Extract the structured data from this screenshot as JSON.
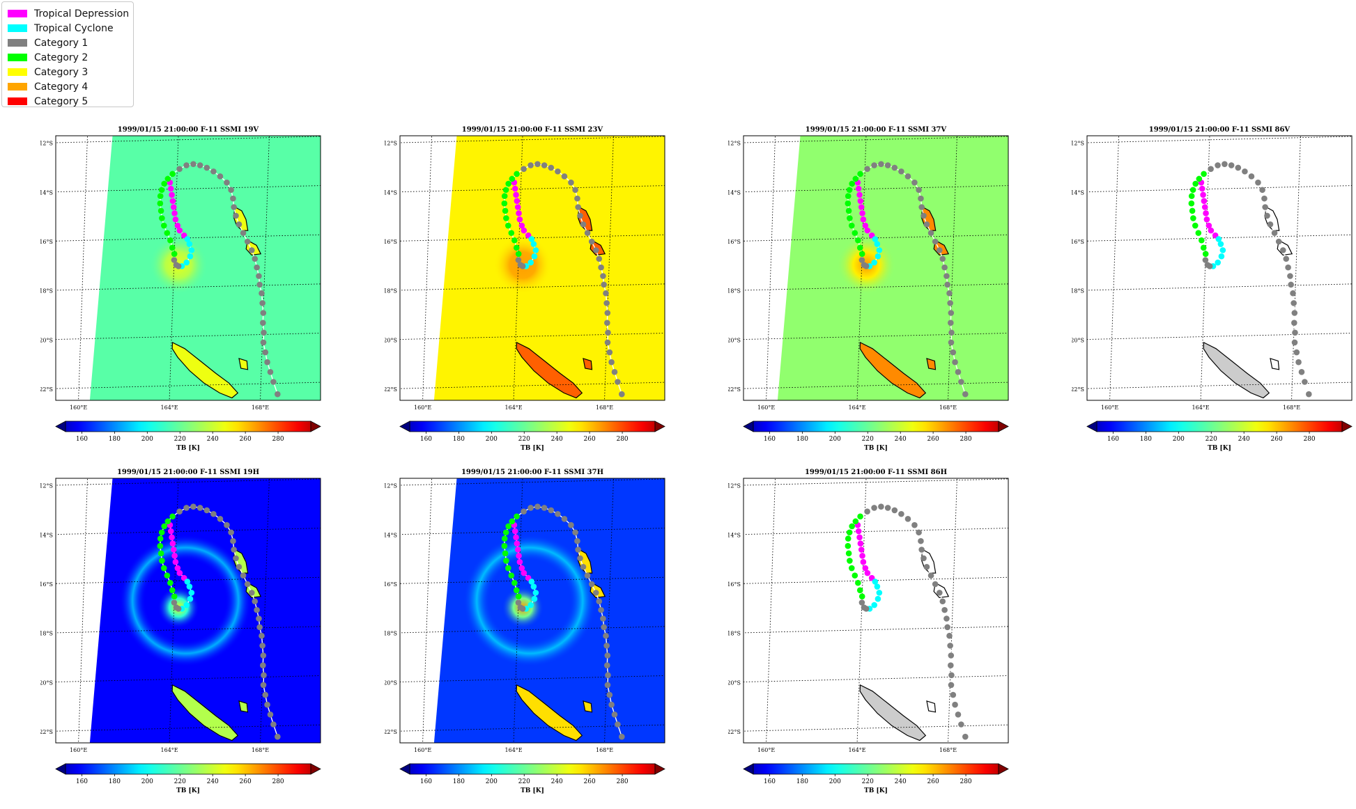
{
  "legend": [
    {
      "label": "Tropical Depression",
      "color": "#ff00ff"
    },
    {
      "label": "Tropical Cyclone",
      "color": "#00ffff"
    },
    {
      "label": "Category 1",
      "color": "#808080"
    },
    {
      "label": "Category 2",
      "color": "#00ff00"
    },
    {
      "label": "Category 3",
      "color": "#ffff00"
    },
    {
      "label": "Category 4",
      "color": "#ffa500"
    },
    {
      "label": "Category 5",
      "color": "#ff0000"
    }
  ],
  "chart_data": {
    "type": "map",
    "lon_ticks": [
      "160°E",
      "164°E",
      "168°E"
    ],
    "lat_ticks": [
      "12°S",
      "14°S",
      "16°S",
      "18°S",
      "20°S",
      "22°S"
    ],
    "colorbar": {
      "ticks": [
        160,
        180,
        200,
        220,
        240,
        260,
        280
      ],
      "label": "TB [K]",
      "range": [
        150,
        300
      ],
      "extend": "both"
    },
    "panels": [
      {
        "title": "1999/01/15 21:00:00  F-11 SSMI 19V",
        "field": "19V"
      },
      {
        "title": "1999/01/15 21:00:00  F-11 SSMI 23V",
        "field": "23V"
      },
      {
        "title": "1999/01/15 21:00:00  F-11 SSMI 37V",
        "field": "37V"
      },
      {
        "title": "1999/01/15 21:00:00  F-11 SSMI 86V",
        "field": "86V"
      },
      {
        "title": "1999/01/15 21:00:00  F-11 SSMI 19H",
        "field": "19H"
      },
      {
        "title": "1999/01/15 21:00:00  F-11 SSMI 37H",
        "field": "37H"
      },
      {
        "title": "1999/01/15 21:00:00  F-11 SSMI 86H",
        "field": "86H"
      }
    ],
    "track": [
      {
        "lon": 163.7,
        "lat": -13.6,
        "cat": "TD"
      },
      {
        "lon": 163.75,
        "lat": -13.85,
        "cat": "TD"
      },
      {
        "lon": 163.8,
        "lat": -14.1,
        "cat": "TD"
      },
      {
        "lon": 163.85,
        "lat": -14.35,
        "cat": "TD"
      },
      {
        "lon": 163.9,
        "lat": -14.6,
        "cat": "TD"
      },
      {
        "lon": 163.95,
        "lat": -14.85,
        "cat": "TD"
      },
      {
        "lon": 164.0,
        "lat": -15.1,
        "cat": "TD"
      },
      {
        "lon": 164.1,
        "lat": -15.35,
        "cat": "TD"
      },
      {
        "lon": 164.2,
        "lat": -15.55,
        "cat": "TD"
      },
      {
        "lon": 164.4,
        "lat": -15.75,
        "cat": "TD"
      },
      {
        "lon": 164.55,
        "lat": -15.9,
        "cat": "TC"
      },
      {
        "lon": 164.65,
        "lat": -16.1,
        "cat": "TC"
      },
      {
        "lon": 164.75,
        "lat": -16.35,
        "cat": "TC"
      },
      {
        "lon": 164.7,
        "lat": -16.6,
        "cat": "TC"
      },
      {
        "lon": 164.55,
        "lat": -16.85,
        "cat": "TC"
      },
      {
        "lon": 164.35,
        "lat": -17.0,
        "cat": "TC"
      },
      {
        "lon": 164.2,
        "lat": -17.0,
        "cat": "C1"
      },
      {
        "lon": 164.1,
        "lat": -16.95,
        "cat": "C1"
      },
      {
        "lon": 164.0,
        "lat": -16.75,
        "cat": "C1"
      },
      {
        "lon": 164.0,
        "lat": -16.5,
        "cat": "C2"
      },
      {
        "lon": 163.9,
        "lat": -16.25,
        "cat": "C2"
      },
      {
        "lon": 163.8,
        "lat": -15.95,
        "cat": "C2"
      },
      {
        "lon": 163.65,
        "lat": -15.65,
        "cat": "C2"
      },
      {
        "lon": 163.5,
        "lat": -15.35,
        "cat": "C2"
      },
      {
        "lon": 163.4,
        "lat": -15.05,
        "cat": "C2"
      },
      {
        "lon": 163.35,
        "lat": -14.75,
        "cat": "C2"
      },
      {
        "lon": 163.3,
        "lat": -14.45,
        "cat": "C2"
      },
      {
        "lon": 163.3,
        "lat": -14.15,
        "cat": "C2"
      },
      {
        "lon": 163.35,
        "lat": -13.9,
        "cat": "C2"
      },
      {
        "lon": 163.45,
        "lat": -13.65,
        "cat": "C2"
      },
      {
        "lon": 163.6,
        "lat": -13.45,
        "cat": "C2"
      },
      {
        "lon": 163.8,
        "lat": -13.25,
        "cat": "C2"
      },
      {
        "lon": 164.1,
        "lat": -13.05,
        "cat": "C1"
      },
      {
        "lon": 164.4,
        "lat": -12.9,
        "cat": "C1"
      },
      {
        "lon": 164.7,
        "lat": -12.85,
        "cat": "C1"
      },
      {
        "lon": 165.0,
        "lat": -12.9,
        "cat": "C1"
      },
      {
        "lon": 165.3,
        "lat": -13.0,
        "cat": "C1"
      },
      {
        "lon": 165.6,
        "lat": -13.15,
        "cat": "C1"
      },
      {
        "lon": 165.9,
        "lat": -13.35,
        "cat": "C1"
      },
      {
        "lon": 166.2,
        "lat": -13.6,
        "cat": "C1"
      },
      {
        "lon": 166.4,
        "lat": -13.9,
        "cat": "C1"
      },
      {
        "lon": 166.5,
        "lat": -14.25,
        "cat": "C1"
      },
      {
        "lon": 166.55,
        "lat": -14.6,
        "cat": "C1"
      },
      {
        "lon": 166.65,
        "lat": -14.95,
        "cat": "C1"
      },
      {
        "lon": 166.8,
        "lat": -15.3,
        "cat": "C1"
      },
      {
        "lon": 167.0,
        "lat": -15.65,
        "cat": "C1"
      },
      {
        "lon": 167.2,
        "lat": -16.0,
        "cat": "C1"
      },
      {
        "lon": 167.4,
        "lat": -16.35,
        "cat": "C1"
      },
      {
        "lon": 167.55,
        "lat": -16.7,
        "cat": "C1"
      },
      {
        "lon": 167.65,
        "lat": -17.05,
        "cat": "C1"
      },
      {
        "lon": 167.75,
        "lat": -17.4,
        "cat": "C1"
      },
      {
        "lon": 167.8,
        "lat": -17.75,
        "cat": "C1"
      },
      {
        "lon": 167.9,
        "lat": -18.1,
        "cat": "C1"
      },
      {
        "lon": 167.95,
        "lat": -18.5,
        "cat": "C1"
      },
      {
        "lon": 168.0,
        "lat": -18.9,
        "cat": "C1"
      },
      {
        "lon": 168.0,
        "lat": -19.3,
        "cat": "C1"
      },
      {
        "lon": 168.05,
        "lat": -19.7,
        "cat": "C1"
      },
      {
        "lon": 168.05,
        "lat": -20.1,
        "cat": "C1"
      },
      {
        "lon": 168.15,
        "lat": -20.5,
        "cat": "C1"
      },
      {
        "lon": 168.25,
        "lat": -20.9,
        "cat": "C1"
      },
      {
        "lon": 168.4,
        "lat": -21.3,
        "cat": "C1"
      },
      {
        "lon": 168.55,
        "lat": -21.7,
        "cat": "C1"
      },
      {
        "lon": 168.75,
        "lat": -22.2,
        "cat": "C1"
      }
    ]
  }
}
